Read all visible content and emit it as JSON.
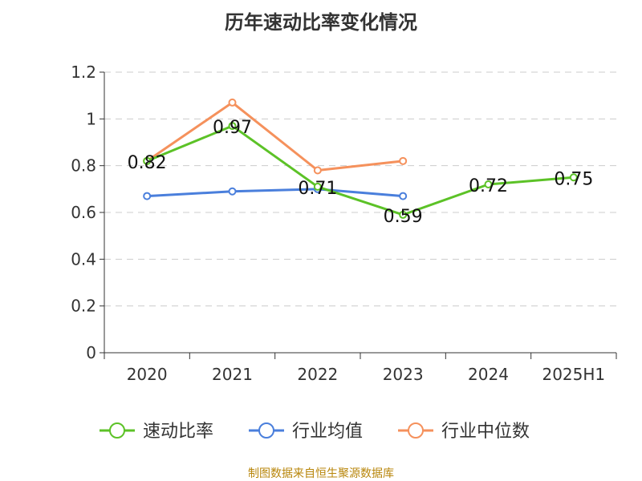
{
  "title": "历年速动比率变化情况",
  "source": "制图数据来自恒生聚源数据库",
  "chart_data": {
    "type": "line",
    "title": "历年速动比率变化情况",
    "categories": [
      "2020",
      "2021",
      "2022",
      "2023",
      "2024",
      "2025H1"
    ],
    "ylim": [
      0,
      1.2
    ],
    "yticks": [
      "0",
      "0.2",
      "0.4",
      "0.6",
      "0.8",
      "1",
      "1.2"
    ],
    "ytick_values": [
      0,
      0.2,
      0.4,
      0.6,
      0.8,
      1.0,
      1.2
    ],
    "grid": true,
    "legend_position": "bottom",
    "series": [
      {
        "name": "速动比率",
        "color": "#5cc227",
        "values": [
          0.82,
          0.97,
          0.71,
          0.59,
          0.72,
          0.75
        ],
        "labels": [
          "0.82",
          "0.97",
          "0.71",
          "0.59",
          "0.72",
          "0.75"
        ]
      },
      {
        "name": "行业均值",
        "color": "#4a7fdc",
        "values": [
          0.67,
          0.69,
          0.7,
          0.67,
          null,
          null
        ]
      },
      {
        "name": "行业中位数",
        "color": "#f5915c",
        "values": [
          0.82,
          1.07,
          0.78,
          0.82,
          null,
          null
        ]
      }
    ]
  }
}
